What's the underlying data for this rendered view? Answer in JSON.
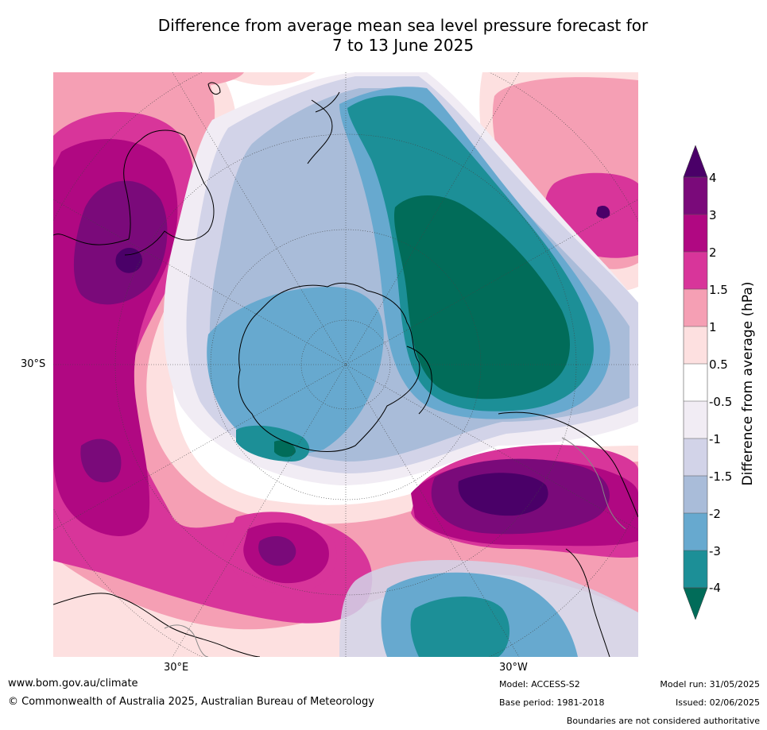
{
  "title_line1": "Difference from average mean sea level pressure forecast for",
  "title_line2": "7 to 13 June 2025",
  "axis_labels": {
    "lat_left": "30°S",
    "lon_bottom_left": "30°E",
    "lon_bottom_right": "30°W"
  },
  "colorbar": {
    "title": "Difference from average (hPa)",
    "ticks": [
      "4",
      "3",
      "2",
      "1.5",
      "1",
      "0.5",
      "-0.5",
      "-1",
      "-1.5",
      "-2",
      "-3",
      "-4"
    ],
    "colors": {
      "extend_max": "#4a0068",
      "p3_4": "#7a0a7a",
      "p2_3": "#b00882",
      "p1_5_2": "#d8359a",
      "p1_1_5": "#f59fb4",
      "p0_5_1": "#fde0e0",
      "neutral": "#ffffff",
      "n0_5_1": "#f1ecf4",
      "n1_1_5": "#d2d3e8",
      "n1_5_2": "#a9bcd9",
      "n2_3": "#67a9cf",
      "n3_4": "#1c8f97",
      "extend_min": "#016c59"
    }
  },
  "footer": {
    "website": "www.bom.gov.au/climate",
    "copyright": "© Commonwealth of Australia 2025, Australian Bureau of Meteorology",
    "model": "Model: ACCESS-S2",
    "base_period": "Base period: 1981-2018",
    "model_run": "Model run: 31/05/2025",
    "issued": "Issued: 02/06/2025",
    "disclaimer": "Boundaries are not considered authoritative"
  }
}
